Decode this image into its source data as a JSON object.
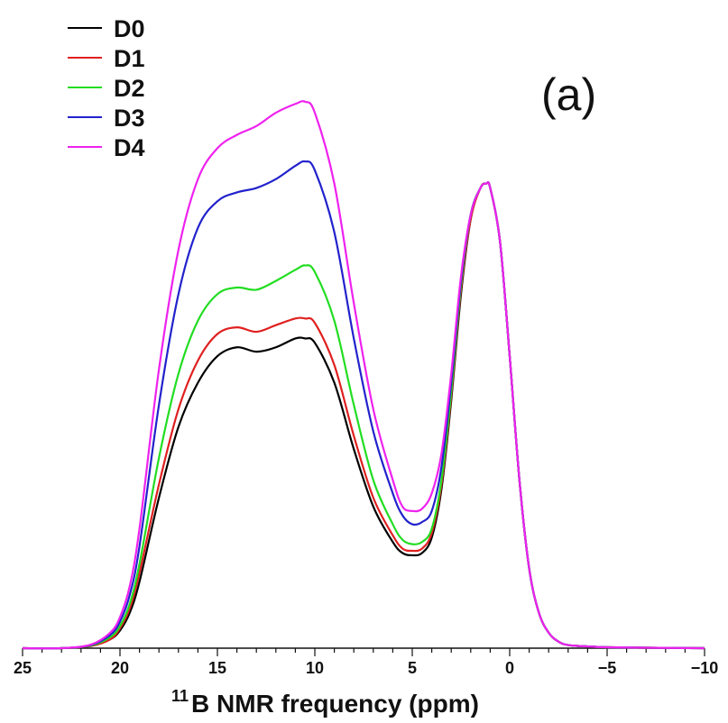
{
  "chart_data": {
    "type": "line",
    "panel_label": "(a)",
    "xlabel_sup": "11",
    "xlabel": "B NMR frequency (ppm)",
    "ylabel": "",
    "xlim": [
      25,
      -10
    ],
    "ylim": [
      0,
      1.2
    ],
    "x_ticks": [
      "25",
      "20",
      "15",
      "10",
      "5",
      "0",
      "−5",
      "−10"
    ],
    "x_tick_values": [
      25,
      20,
      15,
      10,
      5,
      0,
      -5,
      -10
    ],
    "legend_position": "top-left",
    "series": [
      {
        "name": "D0",
        "color": "#000000",
        "x": [
          25,
          23,
          21.5,
          20.5,
          20,
          19.5,
          19,
          18,
          17,
          16,
          15,
          14,
          13,
          12,
          11,
          10.5,
          10,
          9,
          8,
          7,
          6,
          5.5,
          5,
          4.5,
          4,
          3.5,
          3,
          2.5,
          2,
          1.5,
          1.2,
          1,
          0.5,
          0,
          -0.5,
          -1,
          -1.5,
          -2,
          -2.5,
          -3,
          -4,
          -5,
          -7,
          -10
        ],
        "y": [
          0,
          0,
          0.005,
          0.02,
          0.04,
          0.08,
          0.15,
          0.34,
          0.5,
          0.6,
          0.66,
          0.68,
          0.67,
          0.68,
          0.7,
          0.7,
          0.69,
          0.6,
          0.45,
          0.32,
          0.24,
          0.215,
          0.21,
          0.215,
          0.25,
          0.36,
          0.56,
          0.8,
          0.97,
          1.04,
          1.05,
          1.04,
          0.92,
          0.66,
          0.38,
          0.18,
          0.08,
          0.035,
          0.015,
          0.007,
          0.004,
          0.002,
          0.001,
          0
        ]
      },
      {
        "name": "D1",
        "color": "#e02020",
        "x": [
          25,
          23,
          21.5,
          20.5,
          20,
          19.5,
          19,
          18,
          17,
          16,
          15,
          14,
          13,
          12,
          11,
          10.5,
          10,
          9,
          8,
          7,
          6,
          5.5,
          5,
          4.5,
          4,
          3.5,
          3,
          2.5,
          2,
          1.5,
          1.2,
          1,
          0.5,
          0,
          -0.5,
          -1,
          -1.5,
          -2,
          -2.5,
          -3,
          -4,
          -5,
          -7,
          -10
        ],
        "y": [
          0,
          0,
          0.005,
          0.02,
          0.045,
          0.09,
          0.17,
          0.37,
          0.54,
          0.65,
          0.71,
          0.725,
          0.715,
          0.73,
          0.745,
          0.745,
          0.735,
          0.64,
          0.48,
          0.34,
          0.255,
          0.225,
          0.22,
          0.225,
          0.26,
          0.37,
          0.57,
          0.81,
          0.97,
          1.04,
          1.05,
          1.04,
          0.92,
          0.66,
          0.38,
          0.18,
          0.08,
          0.035,
          0.015,
          0.007,
          0.004,
          0.002,
          0.001,
          0
        ]
      },
      {
        "name": "D2",
        "color": "#22dd22",
        "x": [
          25,
          23,
          21.5,
          20.5,
          20,
          19.5,
          19,
          18,
          17,
          16,
          15,
          14,
          13,
          12,
          11,
          10.5,
          10,
          9,
          8,
          7,
          6,
          5.5,
          5,
          4.5,
          4,
          3.5,
          3,
          2.5,
          2,
          1.5,
          1.2,
          1,
          0.5,
          0,
          -0.5,
          -1,
          -1.5,
          -2,
          -2.5,
          -3,
          -4,
          -5,
          -7,
          -10
        ],
        "y": [
          0,
          0,
          0.006,
          0.025,
          0.05,
          0.1,
          0.19,
          0.43,
          0.62,
          0.74,
          0.8,
          0.815,
          0.81,
          0.83,
          0.855,
          0.865,
          0.85,
          0.74,
          0.55,
          0.38,
          0.28,
          0.245,
          0.235,
          0.24,
          0.27,
          0.38,
          0.58,
          0.82,
          0.98,
          1.04,
          1.05,
          1.04,
          0.92,
          0.66,
          0.38,
          0.18,
          0.08,
          0.035,
          0.015,
          0.007,
          0.004,
          0.002,
          0.001,
          0
        ]
      },
      {
        "name": "D3",
        "color": "#2222cc",
        "x": [
          25,
          23,
          21.5,
          20.5,
          20,
          19.5,
          19,
          18,
          17,
          16,
          15,
          14,
          13,
          12,
          11,
          10.5,
          10,
          9,
          8,
          7,
          6,
          5.5,
          5,
          4.5,
          4,
          3.5,
          3,
          2.5,
          2,
          1.5,
          1.2,
          1,
          0.5,
          0,
          -0.5,
          -1,
          -1.5,
          -2,
          -2.5,
          -3,
          -4,
          -5,
          -7,
          -10
        ],
        "y": [
          0,
          0,
          0.007,
          0.03,
          0.06,
          0.12,
          0.23,
          0.55,
          0.8,
          0.95,
          1.01,
          1.03,
          1.04,
          1.06,
          1.09,
          1.1,
          1.08,
          0.94,
          0.7,
          0.49,
          0.35,
          0.3,
          0.28,
          0.285,
          0.31,
          0.41,
          0.6,
          0.83,
          0.98,
          1.04,
          1.05,
          1.04,
          0.92,
          0.66,
          0.38,
          0.18,
          0.08,
          0.035,
          0.015,
          0.007,
          0.004,
          0.002,
          0.001,
          0
        ]
      },
      {
        "name": "D4",
        "color": "#ee22ee",
        "x": [
          25,
          23,
          21.5,
          20.5,
          20,
          19.5,
          19,
          18,
          17,
          16,
          15,
          14,
          13,
          12,
          11,
          10.5,
          10,
          9,
          8,
          7,
          6,
          5.5,
          5,
          4.5,
          4,
          3.5,
          3,
          2.5,
          2,
          1.5,
          1.2,
          1,
          0.5,
          0,
          -0.5,
          -1,
          -1.5,
          -2,
          -2.5,
          -3,
          -4,
          -5,
          -7,
          -10
        ],
        "y": [
          0,
          0,
          0.008,
          0.035,
          0.07,
          0.14,
          0.27,
          0.63,
          0.9,
          1.06,
          1.13,
          1.16,
          1.18,
          1.21,
          1.23,
          1.235,
          1.21,
          1.05,
          0.78,
          0.54,
          0.38,
          0.32,
          0.31,
          0.315,
          0.35,
          0.44,
          0.62,
          0.84,
          0.98,
          1.04,
          1.05,
          1.04,
          0.92,
          0.66,
          0.38,
          0.18,
          0.08,
          0.035,
          0.015,
          0.007,
          0.004,
          0.002,
          0.001,
          0
        ]
      }
    ]
  }
}
